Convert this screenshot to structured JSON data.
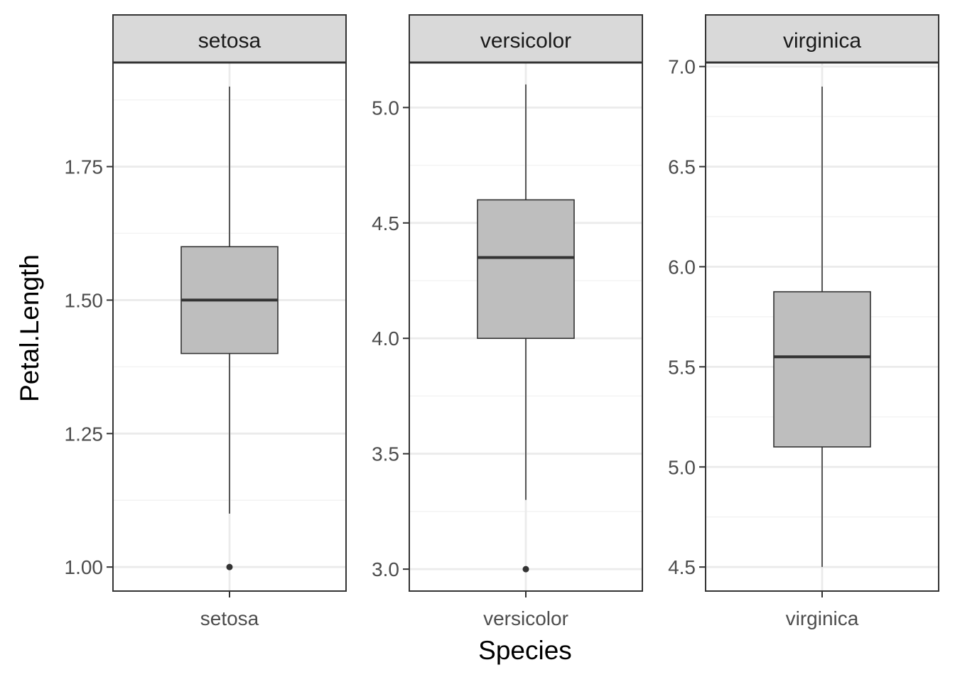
{
  "chart_data": {
    "type": "boxplot",
    "facet_by": "Species",
    "xlabel": "Species",
    "ylabel": "Petal.Length",
    "scales": "free_y",
    "colors": {
      "box_fill": "#bebebe",
      "box_stroke": "#333333",
      "strip_fill": "#d9d9d9",
      "grid_major": "#ebebeb",
      "grid_minor": "#f2f2f2",
      "panel_border": "#333333"
    },
    "panels": [
      {
        "strip": "setosa",
        "category": "setosa",
        "ylim": [
          0.955,
          1.945
        ],
        "yticks": [
          1.0,
          1.25,
          1.5,
          1.75
        ],
        "yticklabels": [
          "1.00",
          "1.25",
          "1.50",
          "1.75"
        ],
        "minor_ticks": [
          1.125,
          1.375,
          1.625,
          1.875
        ],
        "whisker_low": 1.1,
        "q1": 1.4,
        "median": 1.5,
        "q3": 1.6,
        "whisker_high": 1.9,
        "outliers": [
          1.0
        ]
      },
      {
        "strip": "versicolor",
        "category": "versicolor",
        "ylim": [
          2.905,
          5.195
        ],
        "yticks": [
          3.0,
          3.5,
          4.0,
          4.5,
          5.0
        ],
        "yticklabels": [
          "3.0",
          "3.5",
          "4.0",
          "4.5",
          "5.0"
        ],
        "minor_ticks": [
          3.25,
          3.75,
          4.25,
          4.75
        ],
        "whisker_low": 3.3,
        "q1": 4.0,
        "median": 4.35,
        "q3": 4.6,
        "whisker_high": 5.1,
        "outliers": [
          3.0
        ]
      },
      {
        "strip": "virginica",
        "category": "virginica",
        "ylim": [
          4.38,
          7.02
        ],
        "yticks": [
          4.5,
          5.0,
          5.5,
          6.0,
          6.5,
          7.0
        ],
        "yticklabels": [
          "4.5",
          "5.0",
          "5.5",
          "6.0",
          "6.5",
          "7.0"
        ],
        "minor_ticks": [
          4.75,
          5.25,
          5.75,
          6.25,
          6.75
        ],
        "whisker_low": 4.5,
        "q1": 5.1,
        "median": 5.55,
        "q3": 5.875,
        "whisker_high": 6.9,
        "outliers": []
      }
    ]
  }
}
